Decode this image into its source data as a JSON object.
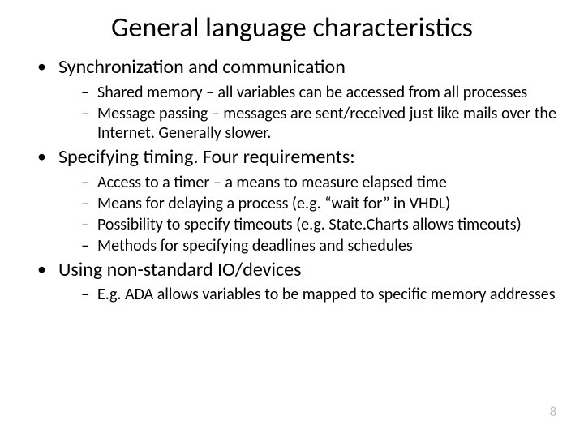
{
  "title": "General language characteristics",
  "bullets": [
    {
      "text": "Synchronization and communication",
      "sub": [
        "Shared memory – all variables can be accessed from all processes",
        "Message passing – messages are sent/received just like mails over the Internet. Generally slower."
      ]
    },
    {
      "text": "Specifying timing. Four requirements:",
      "sub": [
        "Access to a timer – a means to measure elapsed time",
        "Means for delaying a process (e.g. “wait for” in VHDL)",
        "Possibility to specify timeouts (e.g. State.Charts allows timeouts)",
        "Methods for specifying deadlines and schedules"
      ]
    },
    {
      "text": "Using non-standard IO/devices",
      "sub": [
        "E.g. ADA allows variables to be mapped to specific memory addresses"
      ]
    }
  ],
  "pageNumber": "8",
  "colors": {
    "background": "#ffffff",
    "text": "#000000",
    "pageNumber": "#bfbfbf"
  }
}
